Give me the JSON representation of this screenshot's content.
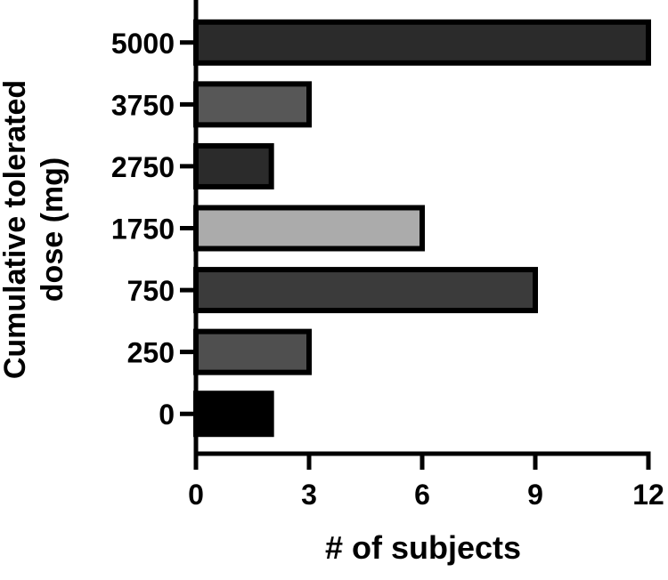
{
  "chart_data": {
    "type": "bar",
    "orientation": "horizontal",
    "x_label": "# of subjects",
    "y_label": "Cumulative tolerated dose (mg)",
    "categories": [
      "5000",
      "3750",
      "2750",
      "1750",
      "750",
      "250",
      "0"
    ],
    "values": [
      12,
      3,
      2,
      6,
      9,
      3,
      2
    ],
    "colors": [
      "#2b2b2b",
      "#575757",
      "#2b2b2b",
      "#ababab",
      "#3b3b3b",
      "#4f4f4f",
      "#000000"
    ],
    "xlim": [
      0,
      12
    ],
    "xticks": [
      0,
      3,
      6,
      9,
      12
    ]
  }
}
